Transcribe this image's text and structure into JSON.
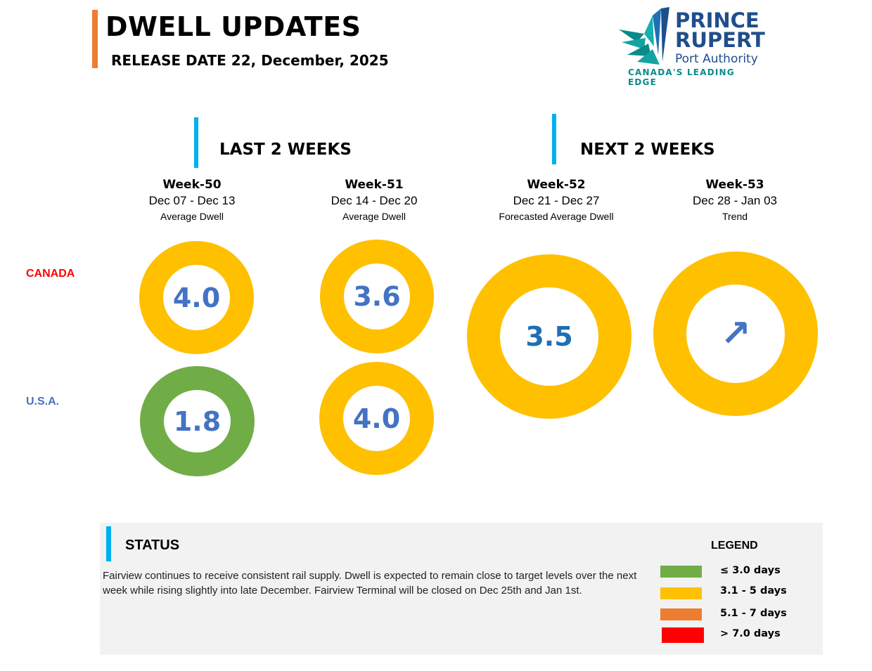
{
  "header": {
    "title": "DWELL UPDATES",
    "release": "RELEASE DATE 22, December, 2025"
  },
  "logo": {
    "line1": "PRINCE",
    "line2": "RUPERT",
    "line3": "Port Authority",
    "tagline": "CANADA'S LEADING EDGE"
  },
  "sections": {
    "last": "LAST 2 WEEKS",
    "next": "NEXT 2 WEEKS"
  },
  "weeks": [
    {
      "name": "Week-50",
      "dates": "Dec 07 - Dec 13",
      "sub": "Average Dwell"
    },
    {
      "name": "Week-51",
      "dates": "Dec 14 - Dec 20",
      "sub": "Average Dwell"
    },
    {
      "name": "Week-52",
      "dates": "Dec 21 - Dec 27",
      "sub": "Forecasted Average Dwell"
    },
    {
      "name": "Week-53",
      "dates": "Dec 28 - Jan 03",
      "sub": "Trend"
    }
  ],
  "countries": {
    "canada": "CANADA",
    "usa": "U.S.A."
  },
  "values": {
    "canada_w50": "4.0",
    "canada_w51": "3.6",
    "usa_w50": "1.8",
    "usa_w51": "4.0",
    "forecast_w52": "3.5",
    "trend_w53": "↗"
  },
  "status": {
    "title": "STATUS",
    "text": "Fairview continues to receive consistent rail supply. Dwell is expected to remain close to target levels over the next week while rising slightly into late December. Fairview Terminal will be closed on Dec 25th and Jan 1st."
  },
  "legend": {
    "title": "LEGEND",
    "items": [
      {
        "label": "≤ 3.0 days",
        "color": "#70ad47"
      },
      {
        "label": "3.1 - 5 days",
        "color": "#ffc000"
      },
      {
        "label": "5.1 - 7 days",
        "color": "#ed7d31"
      },
      {
        "label": "> 7.0 days",
        "color": "#ff0000"
      }
    ]
  },
  "colors": {
    "green": "#70ad47",
    "yellow": "#ffc000",
    "orange": "#ed7d31",
    "red": "#ff0000",
    "accent_orange": "#ed7d31",
    "accent_blue": "#00b0f0",
    "value_blue": "#4472c4",
    "forecast_blue": "#1f6fb4",
    "canada_red": "#ff0000",
    "usa_blue": "#4472c4"
  }
}
